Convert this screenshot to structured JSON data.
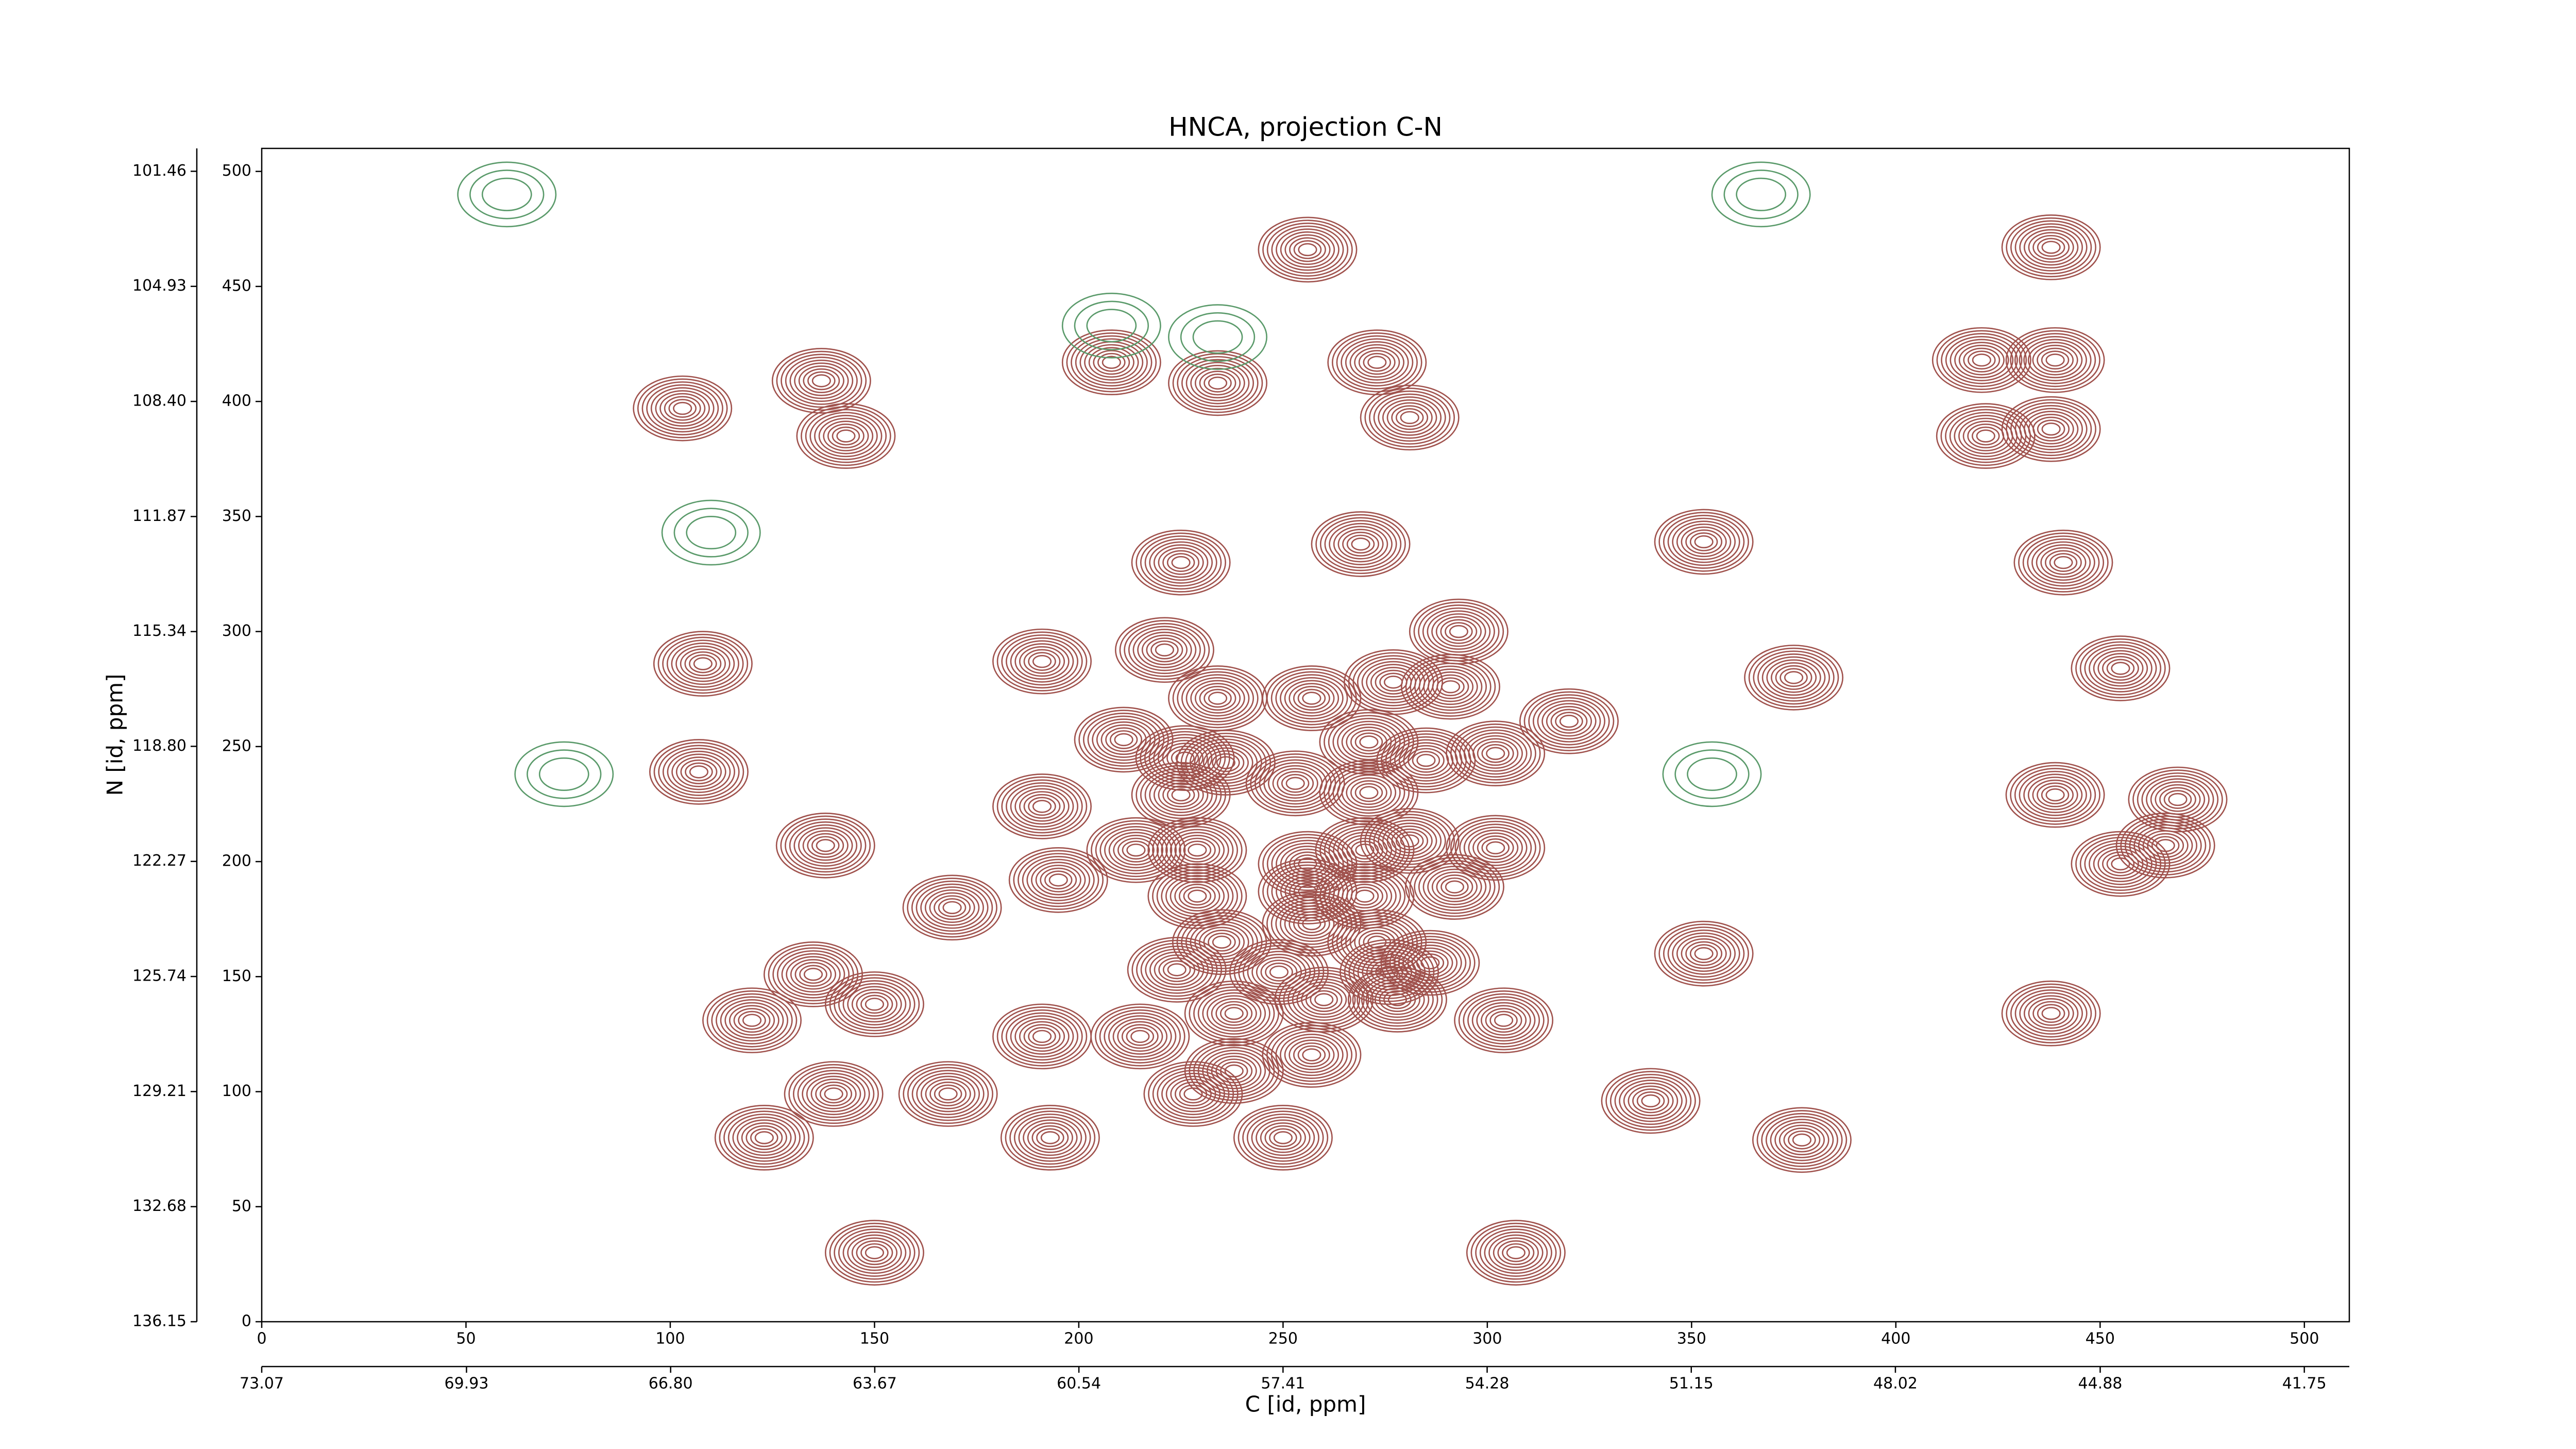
{
  "chart_data": {
    "type": "contour",
    "title": "HNCA, projection C-N",
    "xlabel": "C [id, ppm]",
    "ylabel": "N [id, ppm]",
    "xlim": [
      0,
      511
    ],
    "xticks": [
      0,
      50,
      100,
      150,
      200,
      250,
      300,
      350,
      400,
      450,
      500
    ],
    "x2lim": [
      73.07,
      41.06
    ],
    "x2ticks": [
      73.07,
      69.93,
      {
        "value": 66.8,
        "label": "66.80"
      },
      63.67,
      60.54,
      57.41,
      54.28,
      51.15,
      48.02,
      44.88,
      41.75
    ],
    "ylim": [
      0,
      510
    ],
    "yticks": [
      0,
      50,
      100,
      150,
      200,
      250,
      300,
      350,
      400,
      450,
      500
    ],
    "y2lim": [
      136.15,
      100.77
    ],
    "y2ticks": [
      136.15,
      132.68,
      129.21,
      125.74,
      122.27,
      {
        "value": 118.8,
        "label": "118.80"
      },
      115.34,
      111.87,
      {
        "value": 108.4,
        "label": "108.40"
      },
      104.93,
      101.46
    ],
    "contours": [
      {
        "color": "#a0524d",
        "x": [
          256,
          438,
          208,
          234,
          137,
          143,
          281,
          273,
          103,
          421,
          439,
          422,
          438,
          269,
          225,
          353,
          441,
          293,
          191,
          108,
          455,
          375,
          320,
          211,
          107,
          439,
          469,
          191,
          466,
          455,
          138,
          169,
          195,
          353,
          135,
          150,
          120,
          191,
          215,
          438,
          304,
          168,
          140,
          228,
          340,
          123,
          193,
          250,
          377,
          307,
          150,
          234,
          257,
          277,
          291,
          226,
          271,
          302,
          236,
          253,
          271,
          285,
          225,
          214,
          229,
          256,
          270,
          281,
          302,
          256,
          270,
          292,
          229,
          235,
          257,
          273,
          286,
          224,
          249,
          276,
          238,
          260,
          278,
          257,
          238,
          221
        ],
        "y": [
          466,
          467,
          417,
          408,
          409,
          385,
          393,
          417,
          397,
          418,
          418,
          385,
          388,
          338,
          330,
          339,
          330,
          300,
          287,
          286,
          284,
          280,
          261,
          253,
          239,
          229,
          227,
          224,
          207,
          199,
          207,
          180,
          192,
          160,
          151,
          138,
          131,
          124,
          124,
          134,
          131,
          99,
          99,
          99,
          96,
          80,
          80,
          80,
          79,
          30,
          30,
          271,
          271,
          278,
          276,
          245,
          252,
          247,
          243,
          234,
          230,
          244,
          229,
          205,
          205,
          199,
          205,
          209,
          206,
          187,
          185,
          189,
          185,
          165,
          173,
          165,
          156,
          153,
          152,
          152,
          134,
          140,
          140,
          116,
          109,
          292
        ]
      },
      {
        "color": "#5a9a6a",
        "x": [
          110,
          74,
          355,
          367,
          60,
          208,
          234
        ],
        "y": [
          343,
          238,
          238,
          490,
          490,
          433,
          428
        ]
      }
    ]
  }
}
